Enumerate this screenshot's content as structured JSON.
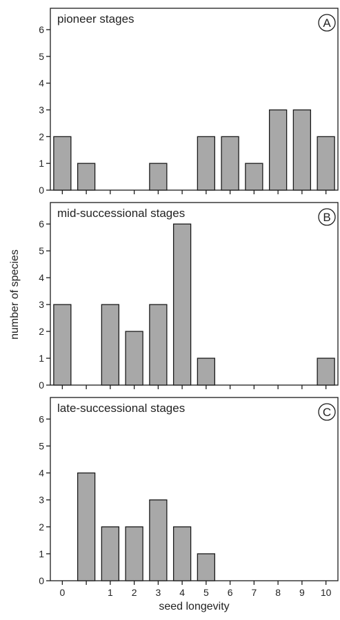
{
  "chart_data": {
    "type": "bar",
    "xlabel": "seed longevity",
    "ylabel": "number of species",
    "x_categories": [
      "0",
      "",
      "1",
      "2",
      "3",
      "4",
      "5",
      "6",
      "7",
      "8",
      "9",
      "10"
    ],
    "ylim": [
      0,
      6.8
    ],
    "yticks": [
      0,
      1,
      2,
      3,
      4,
      5,
      6
    ],
    "panels": [
      {
        "title": "pioneer stages",
        "letter": "A",
        "values": [
          2,
          1,
          0,
          0,
          1,
          0,
          2,
          2,
          1,
          3,
          3,
          2
        ]
      },
      {
        "title": "mid-successional stages",
        "letter": "B",
        "values": [
          3,
          0,
          3,
          2,
          3,
          6,
          1,
          0,
          0,
          0,
          0,
          1
        ]
      },
      {
        "title": "late-successional stages",
        "letter": "C",
        "values": [
          0,
          4,
          2,
          2,
          3,
          2,
          1,
          0,
          0,
          0,
          0,
          0
        ]
      }
    ],
    "bar_color": "#a8a8a8",
    "grid": false
  }
}
